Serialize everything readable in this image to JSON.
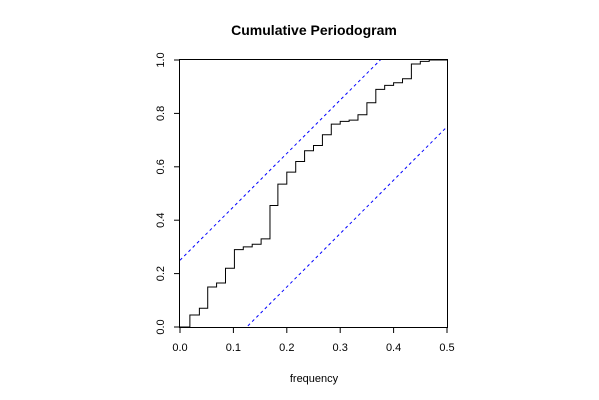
{
  "chart_data": {
    "type": "line",
    "title": "Cumulative Periodogram",
    "xlabel": "frequency",
    "ylabel": "",
    "xlim": [
      0,
      0.5
    ],
    "ylim": [
      0,
      1
    ],
    "x_ticks": [
      0.0,
      0.1,
      0.2,
      0.3,
      0.4,
      0.5
    ],
    "x_tick_labels": [
      "0.0",
      "0.1",
      "0.2",
      "0.3",
      "0.4",
      "0.5"
    ],
    "y_ticks": [
      0.0,
      0.2,
      0.4,
      0.6,
      0.8,
      1.0
    ],
    "y_tick_labels": [
      "0.0",
      "0.2",
      "0.4",
      "0.6",
      "0.8",
      "1.0"
    ],
    "grid": false,
    "colors": {
      "step": "#000000",
      "bounds": "#0000ff"
    },
    "series": [
      {
        "kind": "step",
        "x": [
          0,
          0.0185,
          0.0363,
          0.0519,
          0.0685,
          0.0852,
          0.1019,
          0.1185,
          0.1352,
          0.1519,
          0.1685,
          0.1833,
          0.2,
          0.2167,
          0.2333,
          0.25,
          0.2667,
          0.2833,
          0.3,
          0.3167,
          0.3333,
          0.35,
          0.3667,
          0.3833,
          0.4,
          0.4167,
          0.4333,
          0.45,
          0.4667,
          0.4833
        ],
        "y": [
          0,
          0.045,
          0.07,
          0.15,
          0.165,
          0.22,
          0.29,
          0.3,
          0.31,
          0.33,
          0.455,
          0.535,
          0.58,
          0.62,
          0.66,
          0.68,
          0.72,
          0.76,
          0.77,
          0.775,
          0.795,
          0.84,
          0.89,
          0.905,
          0.915,
          0.93,
          0.985,
          0.995,
          1.0,
          1.0
        ]
      },
      {
        "kind": "dashed-line",
        "x": [
          0,
          0.5
        ],
        "y": [
          0.25,
          1.25
        ]
      },
      {
        "kind": "dashed-line",
        "x": [
          0,
          0.5
        ],
        "y": [
          -0.25,
          0.75
        ]
      }
    ]
  }
}
